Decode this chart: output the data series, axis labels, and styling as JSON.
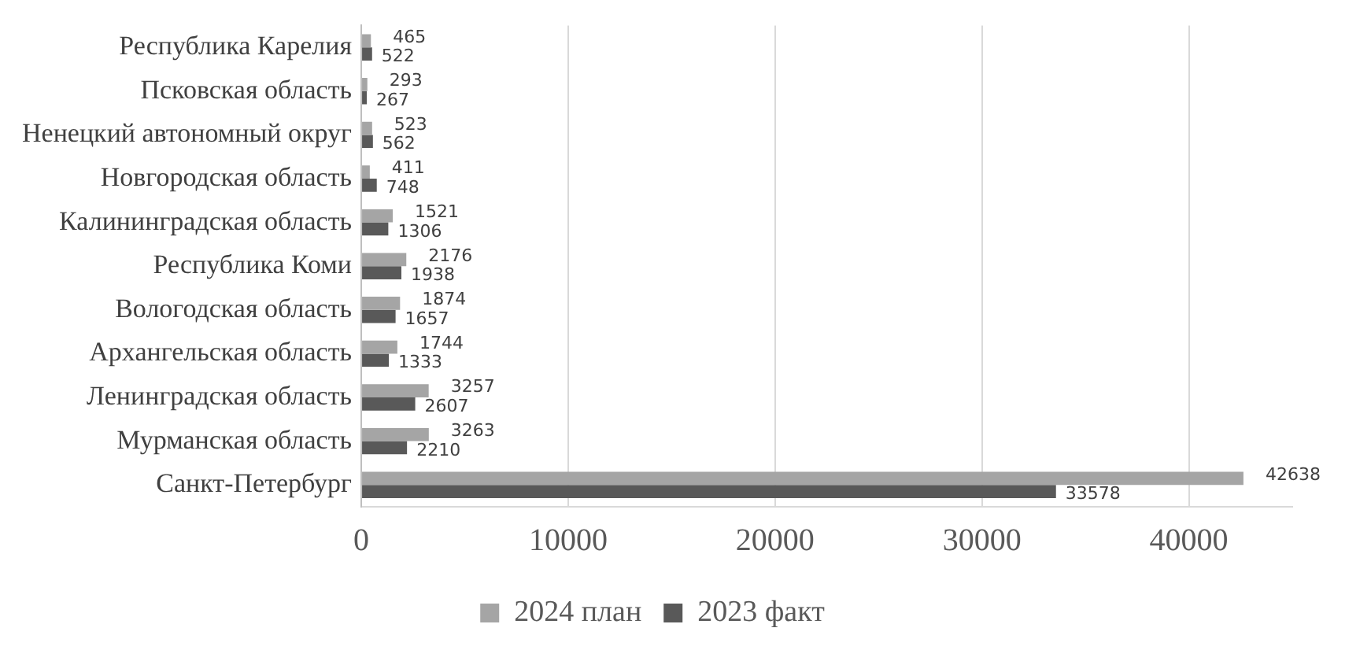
{
  "chart_data": {
    "type": "bar",
    "orientation": "horizontal",
    "categories": [
      "Республика Карелия",
      "Псковская область",
      "Ненецкий автономный округ",
      "Новгородская область",
      "Калининградская область",
      "Республика Коми",
      "Вологодская область",
      "Архангельская область",
      "Ленинградская область",
      "Мурманская область",
      "Санкт-Петербург"
    ],
    "series": [
      {
        "name": "2024 план",
        "color": "#a5a5a5",
        "values": [
          465,
          293,
          523,
          411,
          1521,
          2176,
          1874,
          1744,
          3257,
          3263,
          42638
        ]
      },
      {
        "name": "2023 факт",
        "color": "#595959",
        "values": [
          522,
          267,
          562,
          748,
          1306,
          1938,
          1657,
          1333,
          2607,
          2210,
          33578
        ]
      }
    ],
    "xlim": [
      0,
      45000
    ],
    "xticks": [
      0,
      10000,
      20000,
      30000,
      40000
    ],
    "grid": "x",
    "legend": "bottom",
    "data_labels": true
  }
}
